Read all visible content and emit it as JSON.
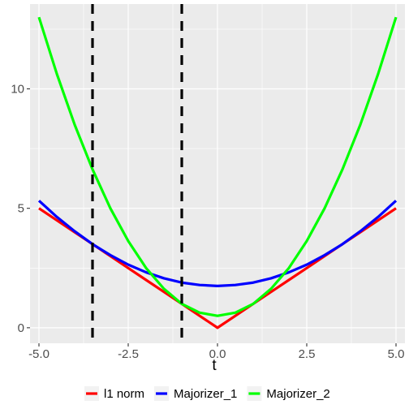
{
  "chart_data": {
    "type": "line",
    "xlabel": "t",
    "ylabel": "",
    "xlim": [
      -5.25,
      5.25
    ],
    "ylim": [
      -0.65,
      13.55
    ],
    "grid": true,
    "legend_position": "bottom",
    "x_ticks": [
      {
        "value": -5.0,
        "label": "-5.0"
      },
      {
        "value": -2.5,
        "label": "-2.5"
      },
      {
        "value": 0.0,
        "label": "0.0"
      },
      {
        "value": 2.5,
        "label": "2.5"
      },
      {
        "value": 5.0,
        "label": "5.0"
      }
    ],
    "y_ticks": [
      {
        "value": 0,
        "label": "0"
      },
      {
        "value": 5,
        "label": "5"
      },
      {
        "value": 10,
        "label": "10"
      }
    ],
    "x_minor_ticks": [
      -3.75,
      -1.25,
      1.25,
      3.75
    ],
    "y_minor_ticks": [
      2.5,
      7.5,
      12.5
    ],
    "x": [
      -5,
      -4.5,
      -4,
      -3.5,
      -3,
      -2.5,
      -2,
      -1.5,
      -1,
      -0.5,
      0,
      0.5,
      1,
      1.5,
      2,
      2.5,
      3,
      3.5,
      4,
      4.5,
      5
    ],
    "series": [
      {
        "name": "l1 norm",
        "color": "#ff0000",
        "values": [
          5,
          4.5,
          4,
          3.5,
          3,
          2.5,
          2,
          1.5,
          1,
          0.5,
          0,
          0.5,
          1,
          1.5,
          2,
          2.5,
          3,
          3.5,
          4,
          4.5,
          5
        ]
      },
      {
        "name": "Majorizer_1",
        "color": "#0000ff",
        "values": [
          5.32,
          4.64,
          4.04,
          3.5,
          3.04,
          2.64,
          2.32,
          2.07,
          1.89,
          1.79,
          1.75,
          1.79,
          1.89,
          2.07,
          2.32,
          2.64,
          3.04,
          3.5,
          4.04,
          4.64,
          5.32
        ]
      },
      {
        "name": "Majorizer_2",
        "color": "#00ff00",
        "values": [
          13.0,
          10.63,
          8.5,
          6.63,
          5.0,
          3.63,
          2.5,
          1.63,
          1.0,
          0.63,
          0.5,
          0.63,
          1.0,
          1.63,
          2.5,
          3.63,
          5.0,
          6.63,
          8.5,
          10.63,
          13.0
        ]
      }
    ],
    "vlines": [
      {
        "x": -3.5,
        "color": "#000000",
        "style": "dashed"
      },
      {
        "x": -1.0,
        "color": "#000000",
        "style": "dashed"
      }
    ]
  }
}
